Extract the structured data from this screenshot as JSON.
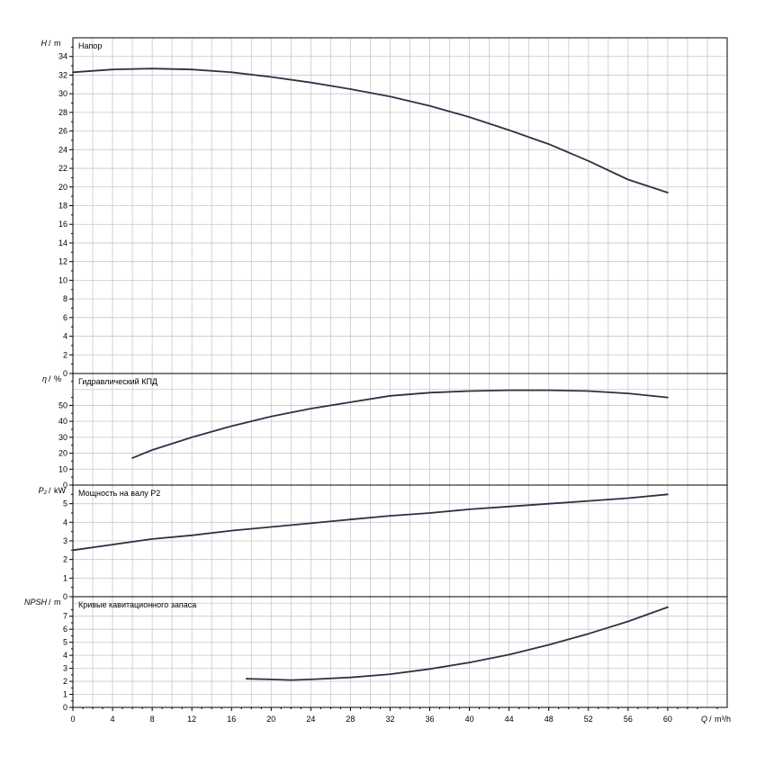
{
  "chart_data": [
    {
      "type": "line",
      "title": "Напор",
      "ylabel_sym": "H",
      "ylabel_unit": "m",
      "xlim": [
        0,
        66
      ],
      "ylim": [
        0,
        36
      ],
      "yticks": [
        0,
        2,
        4,
        6,
        8,
        10,
        12,
        14,
        16,
        18,
        20,
        22,
        24,
        26,
        28,
        30,
        32,
        34
      ],
      "series": [
        {
          "x": [
            0,
            4,
            8,
            12,
            16,
            20,
            24,
            28,
            32,
            36,
            40,
            44,
            48,
            52,
            56,
            60
          ],
          "y": [
            32.3,
            32.6,
            32.7,
            32.6,
            32.3,
            31.8,
            31.2,
            30.5,
            29.7,
            28.7,
            27.5,
            26.1,
            24.6,
            22.8,
            20.8,
            19.4
          ]
        }
      ]
    },
    {
      "type": "line",
      "title": "Гидравлический КПД",
      "ylabel_sym": "η",
      "ylabel_unit": "%",
      "xlim": [
        0,
        66
      ],
      "ylim": [
        0,
        70
      ],
      "yticks": [
        0,
        10,
        20,
        30,
        40,
        50
      ],
      "series": [
        {
          "x": [
            6,
            8,
            12,
            16,
            20,
            24,
            28,
            32,
            36,
            40,
            44,
            48,
            52,
            56,
            60
          ],
          "y": [
            17,
            22,
            30,
            37,
            43,
            48,
            52,
            56,
            58,
            59,
            59.5,
            59.5,
            59,
            57.5,
            55
          ]
        }
      ]
    },
    {
      "type": "line",
      "title": "Мощность на валу P2",
      "ylabel_sym": "P₂",
      "ylabel_unit": "kW",
      "xlim": [
        0,
        66
      ],
      "ylim": [
        0,
        6
      ],
      "yticks": [
        0,
        1,
        2,
        3,
        4,
        5
      ],
      "series": [
        {
          "x": [
            0,
            4,
            8,
            12,
            16,
            20,
            24,
            28,
            32,
            36,
            40,
            44,
            48,
            52,
            56,
            60
          ],
          "y": [
            2.5,
            2.8,
            3.1,
            3.3,
            3.55,
            3.75,
            3.95,
            4.15,
            4.35,
            4.5,
            4.7,
            4.85,
            5.0,
            5.15,
            5.3,
            5.5
          ]
        }
      ]
    },
    {
      "type": "line",
      "title": "Кривые кавитационного запаса",
      "ylabel_sym": "NPSH",
      "ylabel_unit": "m",
      "xlim": [
        0,
        66
      ],
      "ylim": [
        0,
        8.5
      ],
      "yticks": [
        0,
        1,
        2,
        3,
        4,
        5,
        6,
        7
      ],
      "series": [
        {
          "x": [
            17.5,
            20,
            22,
            24,
            28,
            32,
            36,
            40,
            44,
            48,
            52,
            56,
            60
          ],
          "y": [
            2.2,
            2.15,
            2.1,
            2.15,
            2.3,
            2.55,
            2.95,
            3.45,
            4.05,
            4.8,
            5.65,
            6.6,
            7.7
          ]
        }
      ]
    }
  ],
  "x_axis": {
    "ticks": [
      0,
      4,
      8,
      12,
      16,
      20,
      24,
      28,
      32,
      36,
      40,
      44,
      48,
      52,
      56,
      60
    ],
    "label_sym": "Q",
    "label_unit": "m³/h"
  }
}
